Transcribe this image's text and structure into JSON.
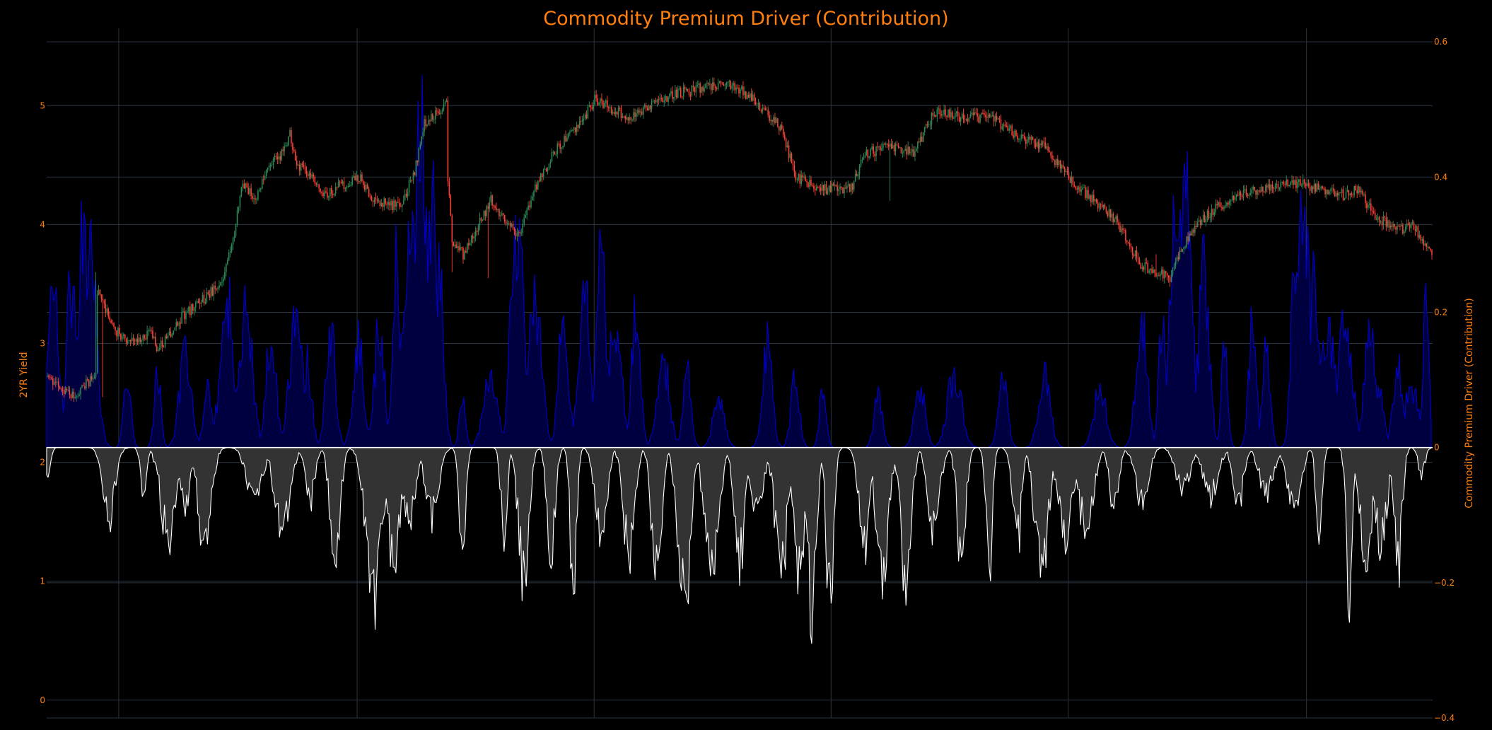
{
  "chart_data": {
    "type": "line",
    "title": "Commodity Premium Driver (Contribution)",
    "xlabel": "",
    "grid": true,
    "legend": "none",
    "colors": {
      "background": "#000000",
      "text": "#ff7f0e",
      "grid": "#2a3442",
      "up": "#2e8b57",
      "down": "#ff4136",
      "positive": "#0000cc",
      "positive_fill": "#000040",
      "negative": "#ffffff",
      "negative_fill": "#333333"
    },
    "left_axis": {
      "label": "2YR Yield",
      "ylim": [
        -0.15,
        5.65
      ],
      "ticks": [
        "0",
        "1",
        "2",
        "3",
        "4",
        "5"
      ]
    },
    "right_axis": {
      "label": "Commodity Premium Driver (Contribution)",
      "ylim": [
        -0.4,
        0.62
      ],
      "ticks": [
        "0.6",
        "0.4",
        "0.2",
        "0",
        "−0.2",
        "−0.4"
      ]
    },
    "x": {
      "range": [
        0,
        1000
      ],
      "gridlines": [
        52,
        224,
        395,
        566,
        737,
        909
      ]
    },
    "series": [
      {
        "name": "",
        "type": "candlestick",
        "axis": "left",
        "count": 1000,
        "close": [
          [
            0,
            2.7
          ],
          [
            20,
            2.55
          ],
          [
            35,
            2.75
          ],
          [
            35.5,
            3.45
          ],
          [
            50,
            3.1
          ],
          [
            60,
            3.0
          ],
          [
            75,
            3.1
          ],
          [
            80,
            2.95
          ],
          [
            95,
            3.2
          ],
          [
            110,
            3.35
          ],
          [
            120,
            3.45
          ],
          [
            128,
            3.6
          ],
          [
            135,
            3.9
          ],
          [
            140,
            4.35
          ],
          [
            150,
            4.2
          ],
          [
            160,
            4.5
          ],
          [
            170,
            4.6
          ],
          [
            175,
            4.75
          ],
          [
            180,
            4.5
          ],
          [
            190,
            4.4
          ],
          [
            200,
            4.25
          ],
          [
            215,
            4.35
          ],
          [
            225,
            4.4
          ],
          [
            235,
            4.2
          ],
          [
            255,
            4.15
          ],
          [
            265,
            4.45
          ],
          [
            272,
            4.85
          ],
          [
            288,
            5.0
          ],
          [
            288.5,
            4.5
          ],
          [
            292,
            3.85
          ],
          [
            300,
            3.75
          ],
          [
            320,
            4.2
          ],
          [
            340,
            3.9
          ],
          [
            350,
            4.25
          ],
          [
            365,
            4.6
          ],
          [
            385,
            4.85
          ],
          [
            395,
            5.05
          ],
          [
            420,
            4.9
          ],
          [
            440,
            5.05
          ],
          [
            470,
            5.15
          ],
          [
            490,
            5.2
          ],
          [
            510,
            5.05
          ],
          [
            530,
            4.8
          ],
          [
            540,
            4.4
          ],
          [
            560,
            4.3
          ],
          [
            580,
            4.3
          ],
          [
            590,
            4.6
          ],
          [
            610,
            4.65
          ],
          [
            625,
            4.6
          ],
          [
            640,
            4.95
          ],
          [
            660,
            4.9
          ],
          [
            680,
            4.9
          ],
          [
            700,
            4.75
          ],
          [
            720,
            4.65
          ],
          [
            740,
            4.35
          ],
          [
            770,
            4.05
          ],
          [
            780,
            3.85
          ],
          [
            790,
            3.65
          ],
          [
            810,
            3.55
          ],
          [
            825,
            3.95
          ],
          [
            845,
            4.15
          ],
          [
            860,
            4.25
          ],
          [
            880,
            4.3
          ],
          [
            900,
            4.35
          ],
          [
            920,
            4.3
          ],
          [
            935,
            4.25
          ],
          [
            945,
            4.3
          ],
          [
            960,
            4.05
          ],
          [
            975,
            3.95
          ],
          [
            985,
            4.0
          ],
          [
            1000,
            3.72
          ]
        ],
        "spikes": [
          [
            35,
            3.6
          ],
          [
            40,
            2.55
          ],
          [
            292,
            3.6
          ],
          [
            318,
            3.55
          ],
          [
            515,
            4.95
          ],
          [
            608,
            4.2
          ],
          [
            800,
            3.75
          ]
        ]
      },
      {
        "name": "",
        "type": "area",
        "axis": "right",
        "sign": "positive",
        "count": 1000,
        "peak": 0.61,
        "humps": [
          [
            5,
            0.33
          ],
          [
            18,
            0.3
          ],
          [
            26,
            0.46
          ],
          [
            31,
            0.42
          ],
          [
            58,
            0.14
          ],
          [
            80,
            0.14
          ],
          [
            100,
            0.17
          ],
          [
            116,
            0.11
          ],
          [
            130,
            0.28
          ],
          [
            144,
            0.26
          ],
          [
            162,
            0.22
          ],
          [
            180,
            0.23
          ],
          [
            188,
            0.16
          ],
          [
            205,
            0.23
          ],
          [
            225,
            0.19
          ],
          [
            240,
            0.23
          ],
          [
            252,
            0.36
          ],
          [
            262,
            0.41
          ],
          [
            270,
            0.6
          ],
          [
            278,
            0.46
          ],
          [
            283,
            0.36
          ],
          [
            300,
            0.1
          ],
          [
            320,
            0.13
          ],
          [
            335,
            0.25
          ],
          [
            340,
            0.39
          ],
          [
            352,
            0.29
          ],
          [
            373,
            0.25
          ],
          [
            388,
            0.3
          ],
          [
            400,
            0.34
          ],
          [
            410,
            0.21
          ],
          [
            425,
            0.25
          ],
          [
            445,
            0.16
          ],
          [
            462,
            0.14
          ],
          [
            485,
            0.1
          ],
          [
            520,
            0.19
          ],
          [
            540,
            0.13
          ],
          [
            560,
            0.11
          ],
          [
            600,
            0.1
          ],
          [
            630,
            0.11
          ],
          [
            655,
            0.14
          ],
          [
            690,
            0.13
          ],
          [
            720,
            0.13
          ],
          [
            760,
            0.11
          ],
          [
            790,
            0.26
          ],
          [
            805,
            0.27
          ],
          [
            815,
            0.48
          ],
          [
            822,
            0.6
          ],
          [
            835,
            0.35
          ],
          [
            850,
            0.2
          ],
          [
            870,
            0.23
          ],
          [
            880,
            0.18
          ],
          [
            900,
            0.32
          ],
          [
            907,
            0.45
          ],
          [
            915,
            0.3
          ],
          [
            925,
            0.23
          ],
          [
            937,
            0.26
          ],
          [
            955,
            0.22
          ],
          [
            960,
            0.13
          ],
          [
            975,
            0.15
          ],
          [
            985,
            0.12
          ],
          [
            995,
            0.26
          ]
        ]
      },
      {
        "name": "",
        "type": "area",
        "axis": "right",
        "sign": "negative",
        "count": 1000,
        "trough": -0.31,
        "dips": [
          [
            0,
            -0.06
          ],
          [
            45,
            -0.14
          ],
          [
            70,
            -0.08
          ],
          [
            88,
            -0.17
          ],
          [
            100,
            -0.11
          ],
          [
            114,
            -0.18
          ],
          [
            150,
            -0.1
          ],
          [
            170,
            -0.16
          ],
          [
            190,
            -0.1
          ],
          [
            208,
            -0.22
          ],
          [
            236,
            -0.29
          ],
          [
            250,
            -0.2
          ],
          [
            262,
            -0.13
          ],
          [
            278,
            -0.13
          ],
          [
            300,
            -0.24
          ],
          [
            330,
            -0.16
          ],
          [
            344,
            -0.24
          ],
          [
            364,
            -0.2
          ],
          [
            380,
            -0.28
          ],
          [
            400,
            -0.17
          ],
          [
            420,
            -0.2
          ],
          [
            440,
            -0.24
          ],
          [
            460,
            -0.29
          ],
          [
            480,
            -0.24
          ],
          [
            500,
            -0.21
          ],
          [
            512,
            -0.13
          ],
          [
            530,
            -0.23
          ],
          [
            543,
            -0.25
          ],
          [
            552,
            -0.31
          ],
          [
            565,
            -0.28
          ],
          [
            590,
            -0.18
          ],
          [
            603,
            -0.24
          ],
          [
            620,
            -0.26
          ],
          [
            640,
            -0.16
          ],
          [
            660,
            -0.21
          ],
          [
            680,
            -0.23
          ],
          [
            700,
            -0.19
          ],
          [
            718,
            -0.24
          ],
          [
            735,
            -0.16
          ],
          [
            750,
            -0.16
          ],
          [
            770,
            -0.11
          ],
          [
            790,
            -0.1
          ],
          [
            820,
            -0.08
          ],
          [
            840,
            -0.09
          ],
          [
            860,
            -0.1
          ],
          [
            880,
            -0.09
          ],
          [
            900,
            -0.11
          ],
          [
            918,
            -0.16
          ],
          [
            940,
            -0.3
          ],
          [
            952,
            -0.19
          ],
          [
            963,
            -0.18
          ],
          [
            975,
            -0.23
          ],
          [
            992,
            -0.05
          ]
        ]
      }
    ]
  }
}
